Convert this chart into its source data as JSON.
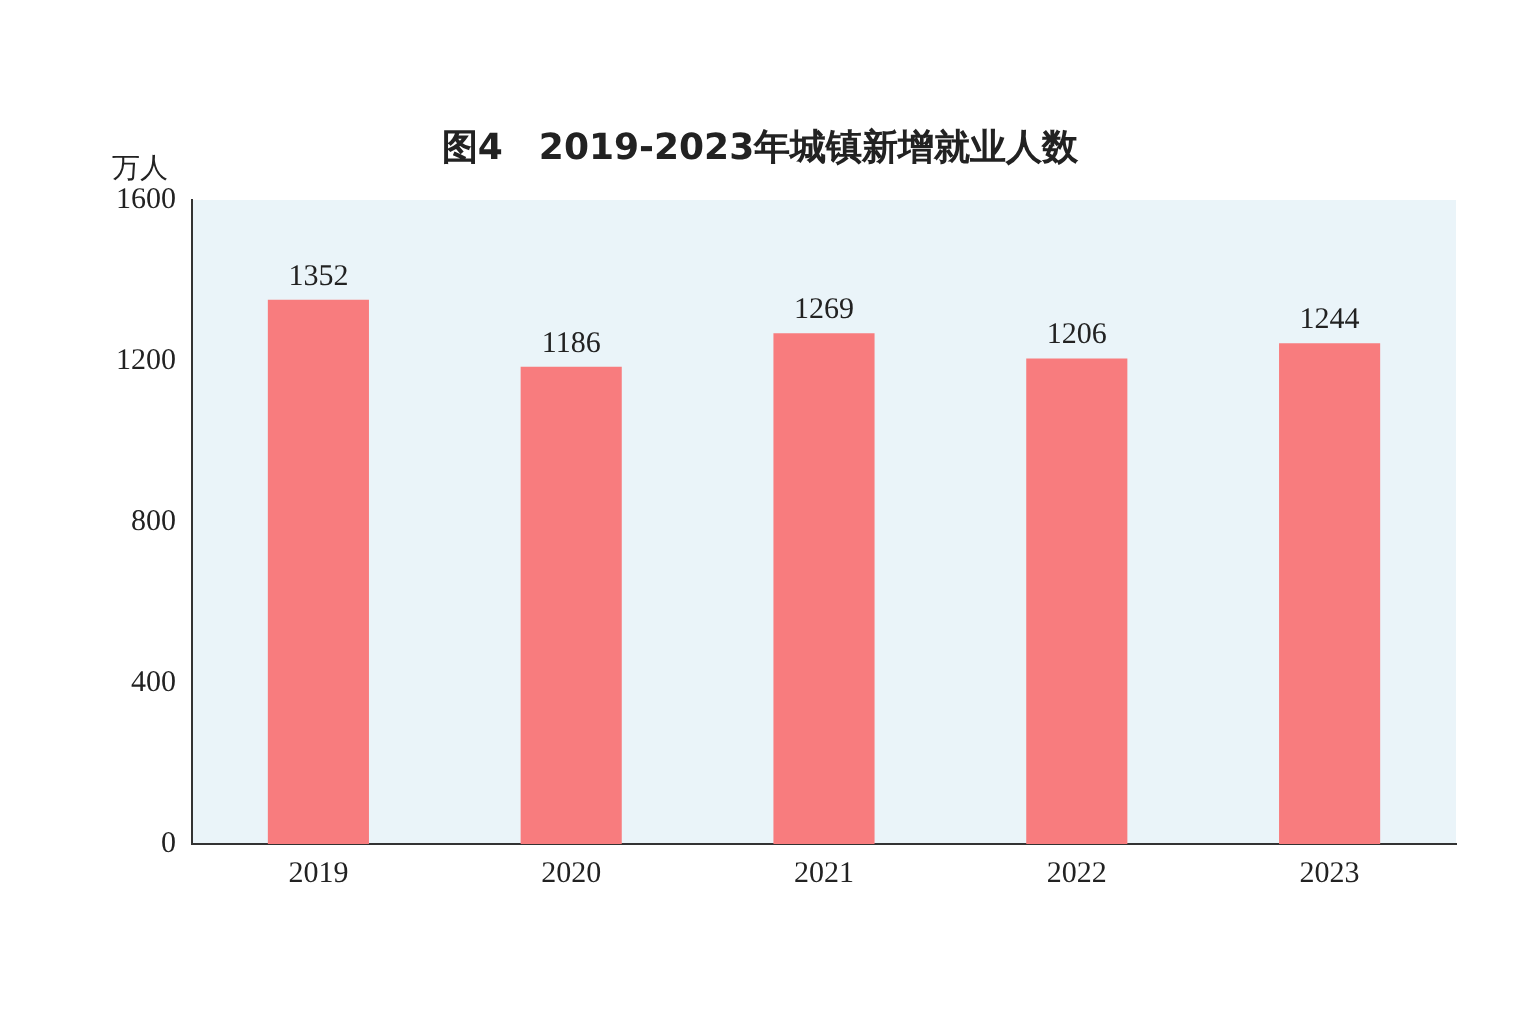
{
  "chart_data": {
    "type": "bar",
    "title": "图4　2019-2023年城镇新增就业人数",
    "ylabel": "万人",
    "categories": [
      "2019",
      "2020",
      "2021",
      "2022",
      "2023"
    ],
    "values": [
      1352,
      1186,
      1269,
      1206,
      1244
    ],
    "color": "#f87c7e",
    "ylim": [
      0,
      1600
    ],
    "yticks": [
      0,
      400,
      800,
      1200,
      1600
    ],
    "grid": false,
    "legend": false,
    "data_labels": true
  }
}
